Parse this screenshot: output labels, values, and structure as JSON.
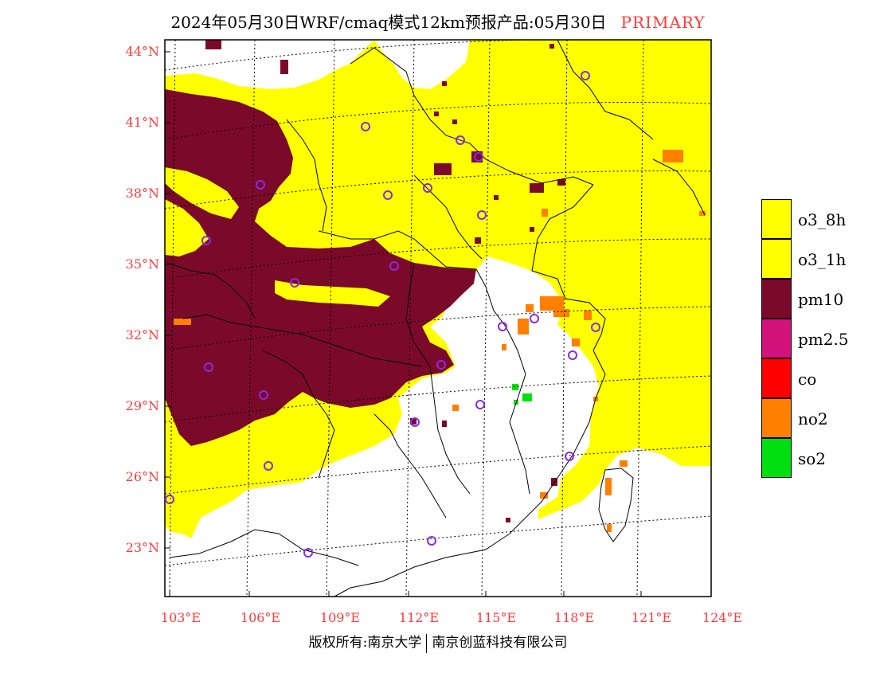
{
  "header": {
    "title": "2024年05月30日WRF/cmaq模式12km预报产品:05月30日",
    "tag": "PRIMARY"
  },
  "axes": {
    "lat_labels": [
      "44°N",
      "41°N",
      "38°N",
      "35°N",
      "32°N",
      "29°N",
      "26°N",
      "23°N"
    ],
    "lon_labels": [
      "103°E",
      "106°E",
      "109°E",
      "112°E",
      "115°E",
      "118°E",
      "121°E",
      "124°E"
    ]
  },
  "legend": {
    "items": [
      {
        "label": "o3_8h",
        "color": "#ffff00"
      },
      {
        "label": "o3_1h",
        "color": "#ffff00"
      },
      {
        "label": "pm10",
        "color": "#7b0a2a"
      },
      {
        "label": "pm2.5",
        "color": "#d4127c"
      },
      {
        "label": "co",
        "color": "#ff0000"
      },
      {
        "label": "no2",
        "color": "#ff7f00"
      },
      {
        "label": "so2",
        "color": "#00e010"
      }
    ]
  },
  "footer": {
    "left": "版权所有:南京大学",
    "right": "南京创蓝科技有限公司"
  },
  "colors": {
    "yellow": "#ffff00",
    "maroon": "#7b0a2a",
    "orange": "#ff7f00",
    "green": "#00e010",
    "station": "#8a2be2",
    "axis_label": "#ff3b3b"
  }
}
